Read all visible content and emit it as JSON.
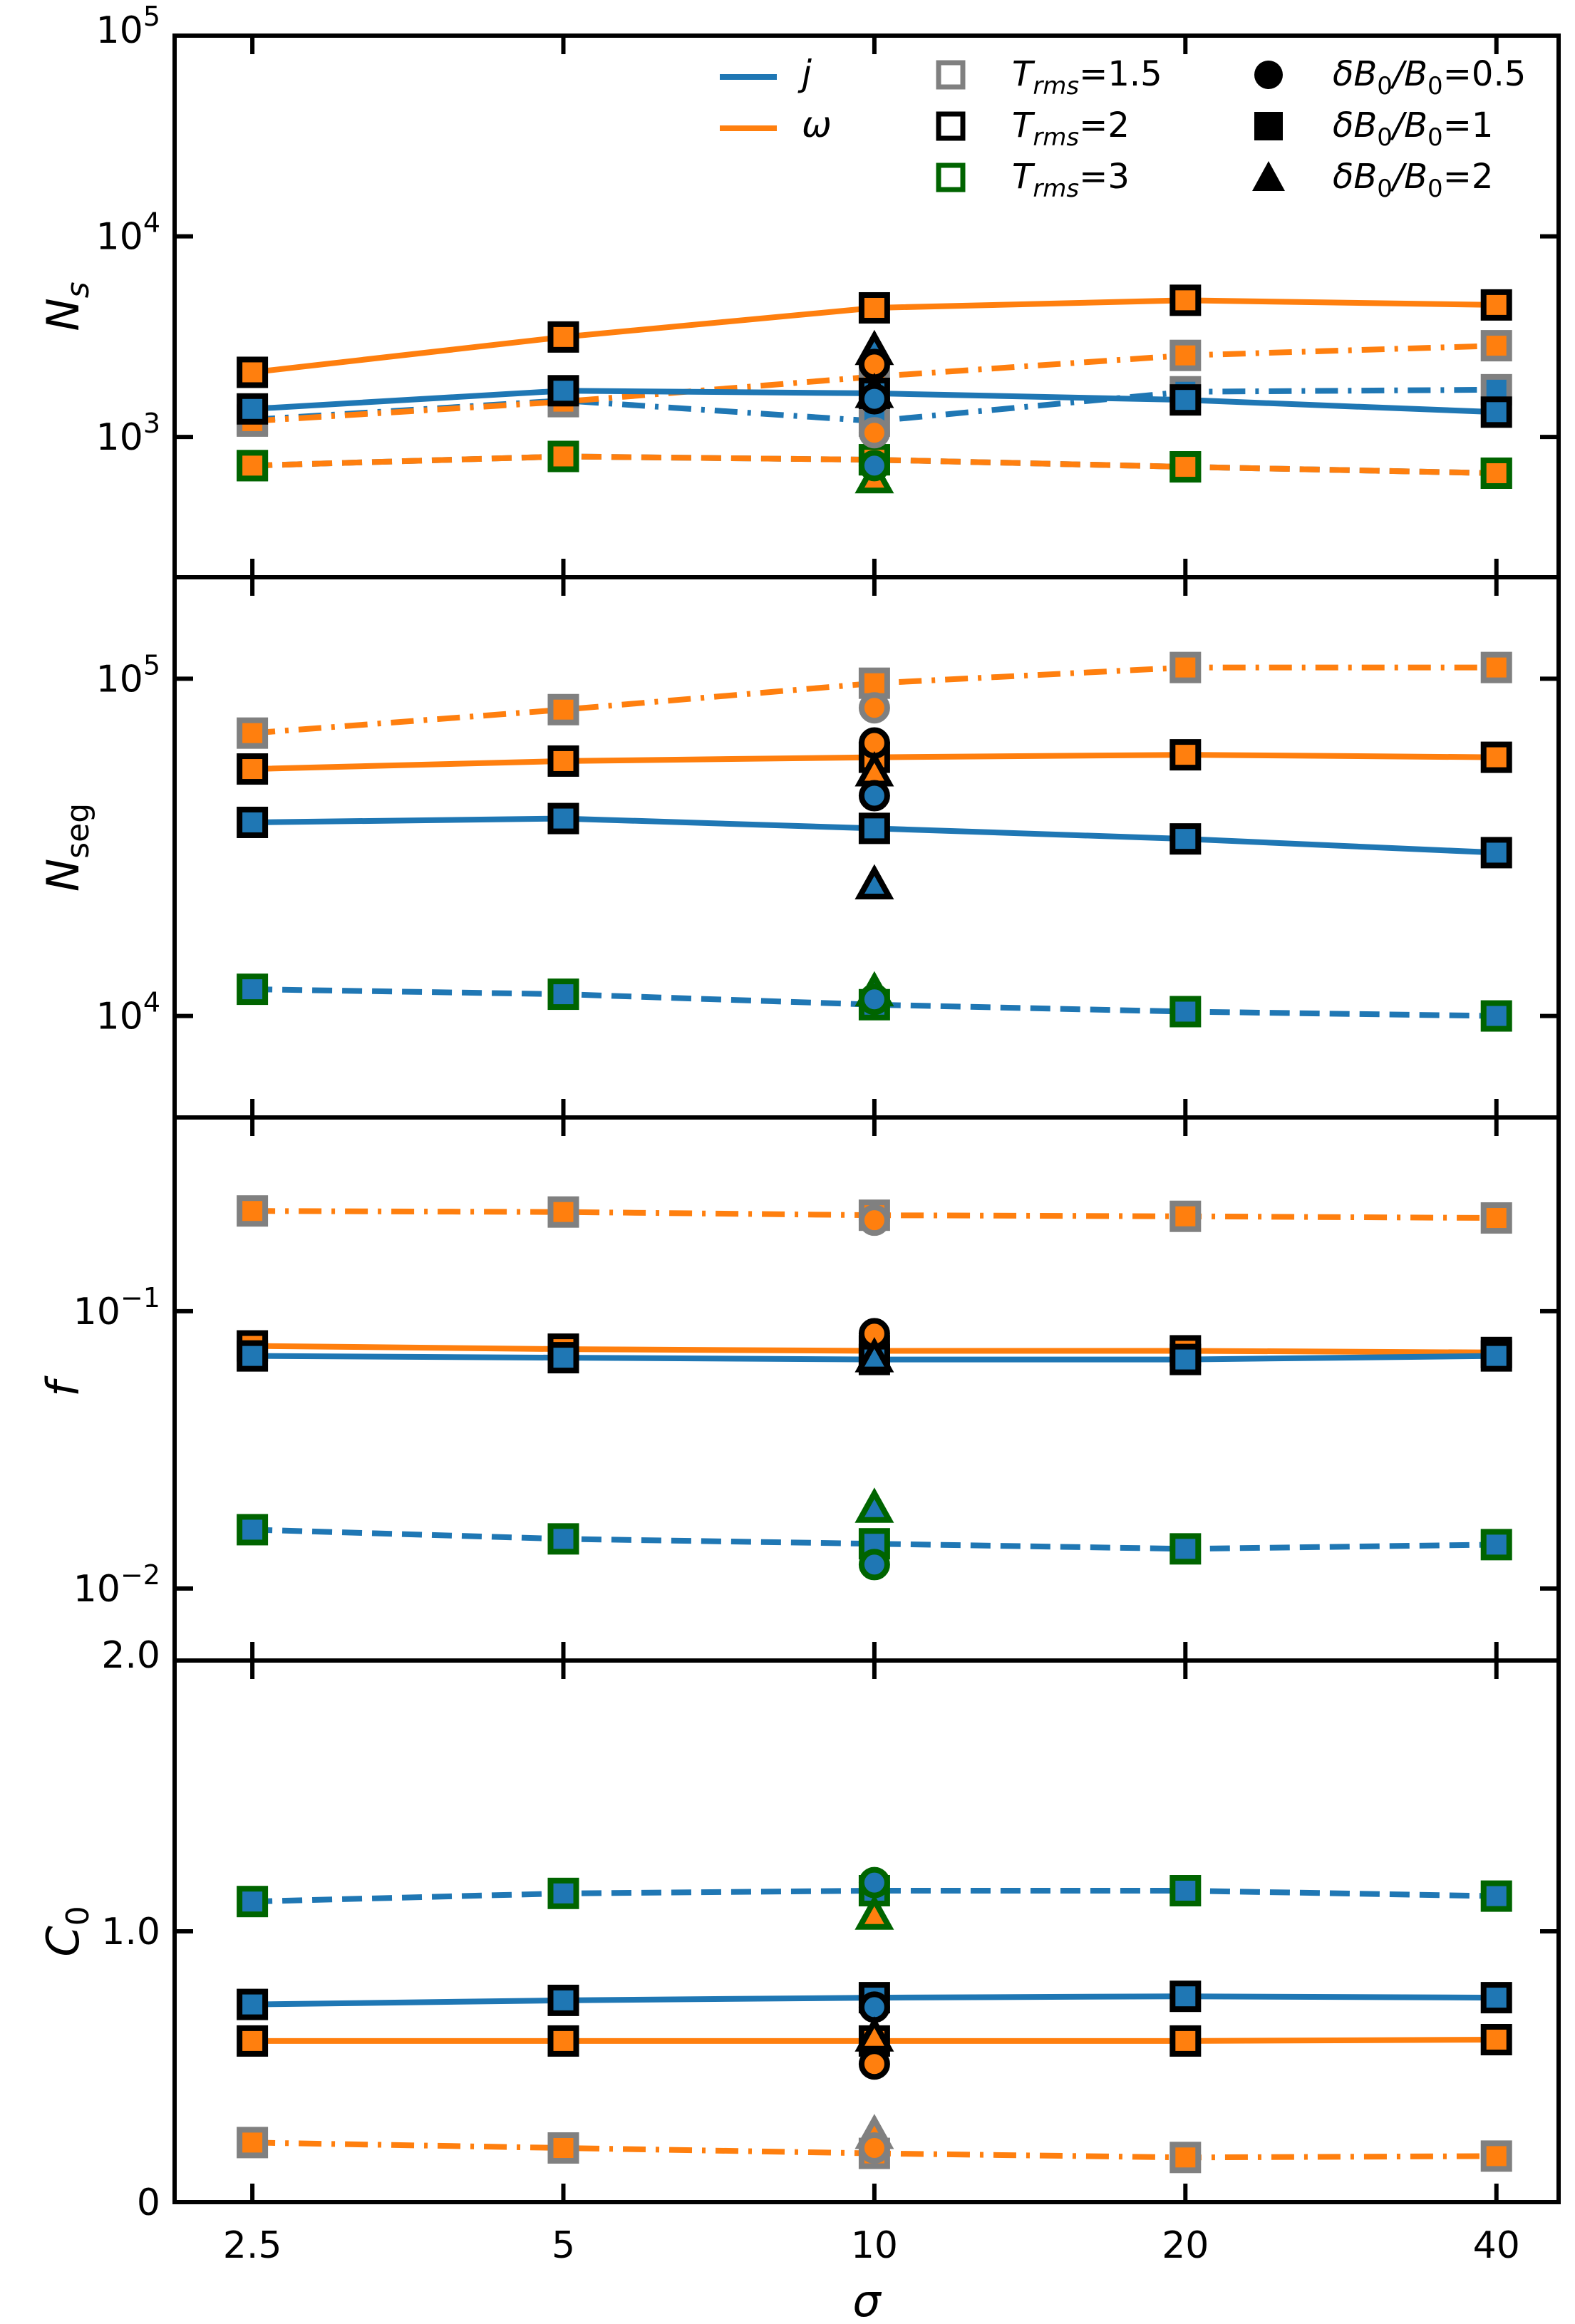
{
  "figure": {
    "xlabel": "σ",
    "x_tick_labels": [
      "2.5",
      "5",
      "10",
      "20",
      "40"
    ],
    "x_values": [
      2.5,
      5,
      10,
      20,
      40
    ]
  },
  "colors": {
    "j": "#1f77b4",
    "omega": "#ff7f0e",
    "T1.5": "#808080",
    "T2": "#000000",
    "T3": "#006400"
  },
  "legend": {
    "lines": [
      {
        "symbol": "j",
        "color_key": "j"
      },
      {
        "symbol": "ω",
        "color_key": "omega"
      }
    ],
    "trms": [
      {
        "base": "T",
        "sub": "rms",
        "value": "=1.5",
        "color_key": "T1.5"
      },
      {
        "base": "T",
        "sub": "rms",
        "value": "=2",
        "color_key": "T2"
      },
      {
        "base": "T",
        "sub": "rms",
        "value": "=3",
        "color_key": "T3"
      }
    ],
    "db": [
      {
        "marker": "circle",
        "text": "δB",
        "sub": "0",
        "tail": "/B",
        "sub2": "0",
        "value": "=0.5"
      },
      {
        "marker": "square",
        "text": "δB",
        "sub": "0",
        "tail": "/B",
        "sub2": "0",
        "value": "=1"
      },
      {
        "marker": "triangle",
        "text": "δB",
        "sub": "0",
        "tail": "/B",
        "sub2": "0",
        "value": "=2"
      }
    ]
  },
  "chart_data": [
    {
      "type": "line",
      "yscale": "log",
      "ylabel_base": "N",
      "ylabel_sub": "s",
      "ylabel_sub_italic": true,
      "ylim": [
        200,
        100000
      ],
      "y_ticks": [
        {
          "value": 1000,
          "base": "10",
          "exp": "3"
        },
        {
          "value": 10000,
          "base": "10",
          "exp": "4"
        },
        {
          "value": 100000,
          "base": "10",
          "exp": "5"
        }
      ],
      "series": [
        {
          "name": "j, Trms=1.5",
          "color": "j",
          "edge": "T1.5",
          "dash": "dashdot",
          "values": [
            1220,
            1520,
            1200,
            1680,
            1720
          ]
        },
        {
          "name": "omega, Trms=1.5",
          "color": "omega",
          "edge": "T1.5",
          "dash": "dashdot",
          "values": [
            1200,
            1500,
            2000,
            2550,
            2850
          ]
        },
        {
          "name": "omega, Trms=2",
          "color": "omega",
          "edge": "T2",
          "dash": "solid",
          "values": [
            2100,
            3150,
            4400,
            4800,
            4550
          ]
        },
        {
          "name": "j, Trms=2",
          "color": "j",
          "edge": "T2",
          "dash": "solid",
          "values": [
            1380,
            1700,
            1650,
            1530,
            1330
          ]
        },
        {
          "name": "j, Trms=3",
          "color": "j",
          "edge": "T3",
          "dash": "dashed",
          "values": [
            720,
            800,
            770,
            710,
            660
          ]
        },
        {
          "name": "omega, Trms=3",
          "color": "omega",
          "edge": "T3",
          "dash": "dashed",
          "values": [
            720,
            800,
            770,
            710,
            660
          ]
        }
      ],
      "points": [
        {
          "x": 10,
          "y": 1050,
          "marker": "circle",
          "face": "omega",
          "edge": "T1.5"
        },
        {
          "x": 10,
          "y": 2700,
          "marker": "triangle",
          "face": "j",
          "edge": "T2"
        },
        {
          "x": 10,
          "y": 2300,
          "marker": "circle",
          "face": "omega",
          "edge": "T2"
        },
        {
          "x": 10,
          "y": 1650,
          "marker": "triangle",
          "face": "omega",
          "edge": "T2"
        },
        {
          "x": 10,
          "y": 1550,
          "marker": "circle",
          "face": "j",
          "edge": "T2"
        },
        {
          "x": 10,
          "y": 620,
          "marker": "triangle",
          "face": "omega",
          "edge": "T3"
        },
        {
          "x": 10,
          "y": 720,
          "marker": "circle",
          "face": "j",
          "edge": "T3"
        }
      ]
    },
    {
      "type": "line",
      "yscale": "log",
      "ylabel_base": "N",
      "ylabel_sub": "seg",
      "ylabel_sub_italic": false,
      "ylim": [
        5000,
        200000
      ],
      "y_ticks": [
        {
          "value": 10000,
          "base": "10",
          "exp": "4"
        },
        {
          "value": 100000,
          "base": "10",
          "exp": "5"
        }
      ],
      "series": [
        {
          "name": "omega, Trms=1.5",
          "color": "omega",
          "edge": "T1.5",
          "dash": "dashdot",
          "values": [
            69000,
            81000,
            97000,
            108000,
            108000
          ]
        },
        {
          "name": "omega, Trms=2",
          "color": "omega",
          "edge": "T2",
          "dash": "solid",
          "values": [
            54000,
            57000,
            58500,
            59500,
            58500
          ]
        },
        {
          "name": "j, Trms=2",
          "color": "j",
          "edge": "T2",
          "dash": "solid",
          "values": [
            37500,
            38500,
            36000,
            33500,
            30500
          ]
        },
        {
          "name": "j, Trms=3",
          "color": "j",
          "edge": "T3",
          "dash": "dashed",
          "values": [
            12000,
            11600,
            10800,
            10300,
            10000
          ]
        }
      ],
      "points": [
        {
          "x": 10,
          "y": 82000,
          "marker": "circle",
          "face": "omega",
          "edge": "T1.5"
        },
        {
          "x": 10,
          "y": 64500,
          "marker": "circle",
          "face": "omega",
          "edge": "T2"
        },
        {
          "x": 10,
          "y": 53000,
          "marker": "triangle",
          "face": "omega",
          "edge": "T2"
        },
        {
          "x": 10,
          "y": 45000,
          "marker": "circle",
          "face": "j",
          "edge": "T2"
        },
        {
          "x": 10,
          "y": 24500,
          "marker": "triangle",
          "face": "j",
          "edge": "T2"
        },
        {
          "x": 10,
          "y": 11800,
          "marker": "triangle",
          "face": "j",
          "edge": "T3"
        },
        {
          "x": 10,
          "y": 11200,
          "marker": "circle",
          "face": "j",
          "edge": "T3"
        }
      ]
    },
    {
      "type": "line",
      "yscale": "log",
      "ylabel_base": "f",
      "ylabel_sub": "",
      "ylabel_sub_italic": false,
      "ylim": [
        0.0055,
        0.5
      ],
      "y_ticks": [
        {
          "value": 0.01,
          "base": "10",
          "exp": "−2"
        },
        {
          "value": 0.1,
          "base": "10",
          "exp": "−1"
        }
      ],
      "series": [
        {
          "name": "omega, Trms=1.5",
          "color": "omega",
          "edge": "T1.5",
          "dash": "dashdot",
          "values": [
            0.23,
            0.228,
            0.222,
            0.22,
            0.217
          ]
        },
        {
          "name": "omega, Trms=2",
          "color": "omega",
          "edge": "T2",
          "dash": "solid",
          "values": [
            0.075,
            0.073,
            0.072,
            0.072,
            0.071
          ]
        },
        {
          "name": "j, Trms=2",
          "color": "j",
          "edge": "T2",
          "dash": "solid",
          "values": [
            0.069,
            0.068,
            0.067,
            0.067,
            0.069
          ]
        },
        {
          "name": "j, Trms=3",
          "color": "j",
          "edge": "T3",
          "dash": "dashed",
          "values": [
            0.0163,
            0.0151,
            0.0145,
            0.0139,
            0.0144
          ]
        }
      ],
      "points": [
        {
          "x": 10,
          "y": 0.213,
          "marker": "circle",
          "face": "omega",
          "edge": "T1.5"
        },
        {
          "x": 10,
          "y": 0.083,
          "marker": "circle",
          "face": "omega",
          "edge": "T2"
        },
        {
          "x": 10,
          "y": 0.068,
          "marker": "triangle",
          "face": "j",
          "edge": "T2"
        },
        {
          "x": 10,
          "y": 0.0195,
          "marker": "triangle",
          "face": "j",
          "edge": "T3"
        },
        {
          "x": 10,
          "y": 0.0122,
          "marker": "circle",
          "face": "j",
          "edge": "T3"
        }
      ]
    },
    {
      "type": "line",
      "yscale": "linear",
      "ylabel_base": "C",
      "ylabel_sub": "0",
      "ylabel_sub_italic": false,
      "ylim": [
        0,
        2.0
      ],
      "y_ticks": [
        {
          "value": 0,
          "label": "0"
        },
        {
          "value": 1.0,
          "label": "1.0"
        },
        {
          "value": 2.0,
          "label": "2.0"
        }
      ],
      "series": [
        {
          "name": "j, Trms=3",
          "color": "j",
          "edge": "T3",
          "dash": "dashed",
          "values": [
            1.11,
            1.14,
            1.15,
            1.15,
            1.13
          ]
        },
        {
          "name": "j, Trms=2",
          "color": "j",
          "edge": "T2",
          "dash": "solid",
          "values": [
            0.73,
            0.745,
            0.755,
            0.76,
            0.755
          ]
        },
        {
          "name": "omega, Trms=2",
          "color": "omega",
          "edge": "T2",
          "dash": "solid",
          "values": [
            0.595,
            0.595,
            0.595,
            0.595,
            0.6
          ]
        },
        {
          "name": "omega, Trms=1.5",
          "color": "omega",
          "edge": "T1.5",
          "dash": "dashdot",
          "values": [
            0.22,
            0.2,
            0.18,
            0.165,
            0.17
          ]
        }
      ],
      "points": [
        {
          "x": 10,
          "y": 1.18,
          "marker": "circle",
          "face": "j",
          "edge": "T3"
        },
        {
          "x": 10,
          "y": 1.06,
          "marker": "triangle",
          "face": "omega",
          "edge": "T3"
        },
        {
          "x": 10,
          "y": 0.72,
          "marker": "circle",
          "face": "j",
          "edge": "T2"
        },
        {
          "x": 10,
          "y": 0.61,
          "marker": "triangle",
          "face": "omega",
          "edge": "T2"
        },
        {
          "x": 10,
          "y": 0.51,
          "marker": "circle",
          "face": "omega",
          "edge": "T2"
        },
        {
          "x": 10,
          "y": 0.25,
          "marker": "triangle",
          "face": "omega",
          "edge": "T1.5"
        },
        {
          "x": 10,
          "y": 0.2,
          "marker": "circle",
          "face": "omega",
          "edge": "T1.5"
        }
      ]
    }
  ]
}
